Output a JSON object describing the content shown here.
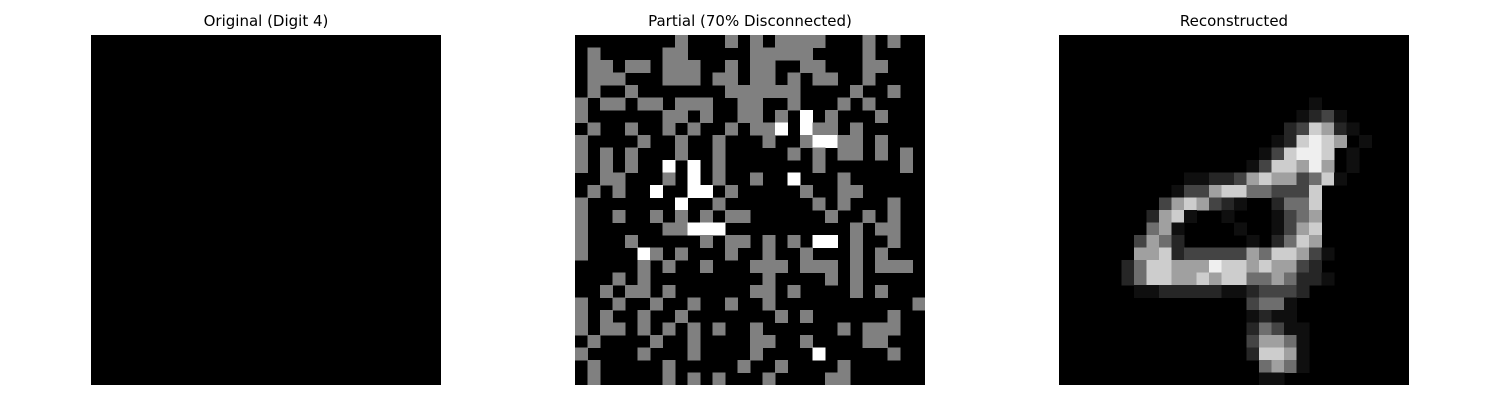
{
  "figure": {
    "panels": [
      {
        "title": "Original (Digit 4)",
        "grid_size": 28,
        "palette": [
          "#000000",
          "#ffffff"
        ],
        "rows": [
          "............................",
          "............................",
          "............................",
          "............................",
          "............................",
          "..................###.......",
          "..................####......",
          ".................###........",
          "................####........",
          "...............##.#.........",
          "..............##..#.........",
          "..............#...#.........",
          ".............##...#.........",
          "............##....#.........",
          "...........##.....#.........",
          "...........##.....#.........",
          "..........##......#.........",
          "..........#.......#.........",
          "..........#.......#.........",
          "..........##########........",
          ".........#####....##........",
          ".........#####....#.........",
          "..................#.........",
          "..................#.........",
          "..................#.........",
          "...................#........",
          "...................###......",
          "...................###......"
        ]
      },
      {
        "title": "Partial (70% Disconnected)",
        "grid_size": 28,
        "palette": [
          "#000000",
          "#808080",
          "#ffffff"
        ],
        "rows": [
          "........1...1.1.1111...1.1..",
          ".1.....11.....11111....1....",
          ".11.11.111..1.11..11...11...",
          ".111...111.11.11.1.11..1....",
          ".1..1.......111111....1..1..",
          "1.11.11.111..11..1...1.1....",
          "1......11.1..11.1.2.1...1...",
          ".1..1..1.1..1.112.211.1.....",
          "1....1..1..1...1..12211.1...",
          "1.1.1...1..1.....1.1.11.1.1.",
          "1.1.1..2.2.1.......1......1.",
          "..11...1.2.1..1..2...1......",
          ".1.1..2..22.1.....1..11.....",
          "1.......2..1.......1.1...1..",
          "1..1..1.1.1.11......1..1.1..",
          "1......11222..........1.11..",
          "1...1.....1.11.1.1.22.1..1..",
          "1....21.1...1..1..1...1.1...",
          ".....1.1..1...111.111.1.111.",
          "...1.1.........1....1.1.....",
          "..1.11.1......11.1....1.1...",
          "1..1..1..1..1..1...........1",
          "1.1..1..1.......1.1......1..",
          "1.11.1.1.1.1..1......1.111..",
          ".1....1..1....11..1....11...",
          "1....1...1....1....2.....1..",
          ".1.....1.....1..1....1......",
          ".1.....1.1.1...1....11......"
        ]
      },
      {
        "title": "Reconstructed",
        "grid_size": 28,
        "palette": [
          "#000000",
          "#0f0f0f",
          "#262626",
          "#444444",
          "#6e6e6e",
          "#a0a0a0",
          "#cdcdcd",
          "#efefef"
        ],
        "rows": [
          "............................",
          "............................",
          "............................",
          "............................",
          "............................",
          "....................1.......",
          "...................1231.....",
          "..................236521....",
          ".................126765.1....",
          "................136776.1....",
          "...............1366575.1....",
          "..........1122356553461.....",
          ".........133566443336.......",
          "........3565321..2446.......",
          ".......2561..1...1345.......",
          ".......451....1..1356.......",
          "......3542.....1.2465.......",
          "......5562333335466531......",
          ".....2466555766565532.......",
          ".....24665565664454221......",
          "......11222221123332........",
          "...............3441.........",
          "...............1211.........",
          "...............24311........",
          "...............35541........",
          "...............26651........",
          "................4541........",
          "................11.........."
        ]
      }
    ]
  }
}
